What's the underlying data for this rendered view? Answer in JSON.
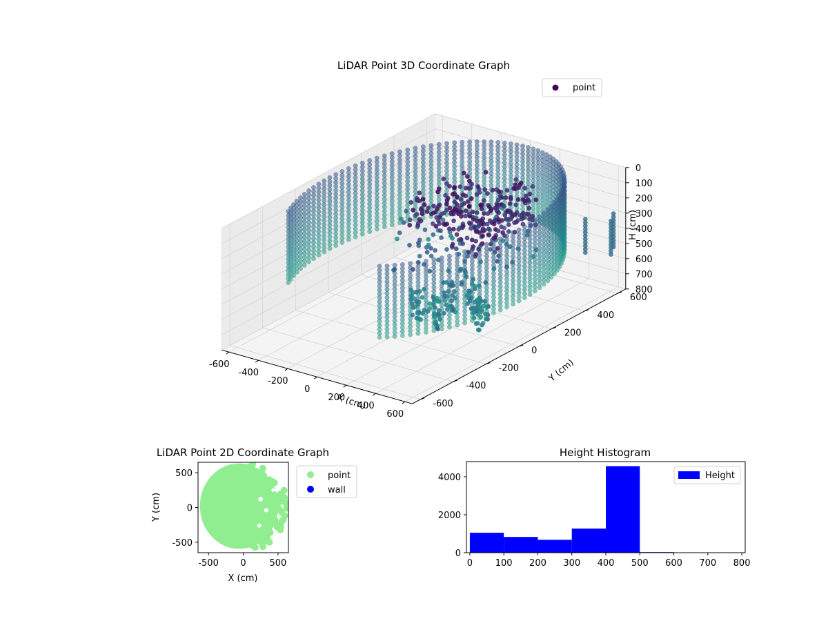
{
  "chart_data": [
    {
      "type": "scatter",
      "title": "LiDAR Point 3D Coordinate Graph",
      "xlabel": "X (cm)",
      "ylabel": "Y (cm)",
      "zlabel": "H (cm)",
      "xlim": [
        -650,
        650
      ],
      "ylim": [
        -650,
        650
      ],
      "zlim": [
        800,
        0
      ],
      "x_ticks": [
        -600,
        -400,
        -200,
        0,
        200,
        400,
        600
      ],
      "y_ticks": [
        -600,
        -400,
        -200,
        0,
        200,
        400,
        600
      ],
      "z_ticks": [
        0,
        100,
        200,
        300,
        400,
        500,
        600,
        700,
        800
      ],
      "legend": {
        "position": "top-right",
        "entries": [
          {
            "label": "point",
            "color": "#440154"
          }
        ]
      },
      "colormap": "viridis",
      "grid": true,
      "series": [
        {
          "name": "point",
          "description_points": {
            "wall_ring": {
              "radius": 640,
              "theta_range_deg": [
                -60,
                215
              ],
              "h_range": [
                0,
                520
              ]
            },
            "dense_cluster_center": [
              80,
              250,
              180
            ],
            "pillars": [
              [
                300,
                -100
              ],
              [
                420,
                -80
              ],
              [
                200,
                -220
              ],
              [
                350,
                -250
              ],
              [
                560,
                -150
              ]
            ],
            "side_posts": [
              [
                520,
                520
              ],
              [
                600,
                620
              ],
              [
                650,
                560
              ]
            ]
          }
        }
      ]
    },
    {
      "type": "scatter",
      "title": "LiDAR Point 2D Coordinate Graph",
      "xlabel": "X (cm)",
      "ylabel": "Y (cm)",
      "xlim": [
        -650,
        650
      ],
      "ylim": [
        -650,
        650
      ],
      "x_ticks": [
        -500,
        0,
        500
      ],
      "y_ticks": [
        -500,
        0,
        500
      ],
      "legend": {
        "position": "outside-right",
        "entries": [
          {
            "label": "point",
            "color": "#90ee90"
          },
          {
            "label": "wall",
            "color": "#0000ff"
          }
        ]
      },
      "series": [
        {
          "name": "point",
          "color": "#90ee90",
          "disk_radius": 640,
          "disk_center": [
            0,
            0
          ]
        }
      ]
    },
    {
      "type": "bar",
      "title": "Height Histogram",
      "legend": {
        "position": "top-right",
        "entries": [
          {
            "label": "Height",
            "color": "#0000ff"
          }
        ]
      },
      "bin_edges": [
        0,
        100,
        200,
        300,
        400,
        500,
        600,
        700,
        800
      ],
      "values": [
        1050,
        830,
        680,
        1270,
        4560,
        30,
        5,
        5
      ],
      "xlim": [
        -10,
        810
      ],
      "ylim": [
        0,
        4800
      ],
      "x_ticks": [
        0,
        100,
        200,
        300,
        400,
        500,
        600,
        700,
        800
      ],
      "y_ticks": [
        0,
        2000,
        4000
      ],
      "series": [
        {
          "name": "Height",
          "color": "#0000ff"
        }
      ]
    }
  ]
}
